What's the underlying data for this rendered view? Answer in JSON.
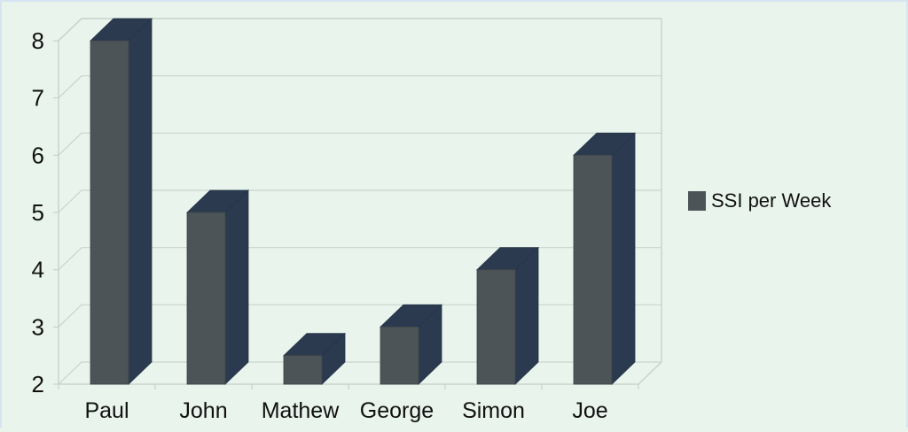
{
  "chart_data": {
    "type": "bar",
    "categories": [
      "Paul",
      "John",
      "Mathew",
      "George",
      "Simon",
      "Joe"
    ],
    "series": [
      {
        "name": "SSI per Week",
        "values": [
          8,
          5,
          2.5,
          3,
          4,
          6
        ]
      }
    ],
    "yticks": [
      "2",
      "3",
      "4",
      "5",
      "6",
      "7",
      "8"
    ],
    "ylim": [
      2,
      8
    ],
    "grid": true,
    "legend_position": "right",
    "three_d": true
  },
  "colors": {
    "bar_front": "#4d5457",
    "bar_side": "#2b3a4f",
    "bar_top": "#2b3a4f",
    "grid": "#c7d3cc",
    "background": "#e8f4ec"
  }
}
